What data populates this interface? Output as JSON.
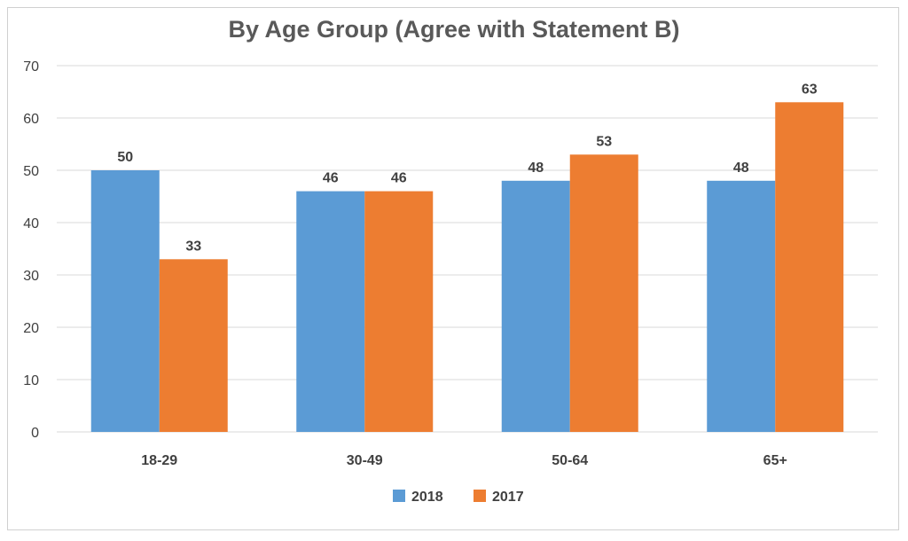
{
  "chart_data": {
    "type": "bar",
    "title": "By Age Group (Agree with Statement B)",
    "categories": [
      "18-29",
      "30-49",
      "50-64",
      "65+"
    ],
    "series": [
      {
        "name": "2018",
        "color": "#5B9BD5",
        "values": [
          50,
          46,
          48,
          48
        ]
      },
      {
        "name": "2017",
        "color": "#ED7D31",
        "values": [
          33,
          46,
          53,
          63
        ]
      }
    ],
    "ylim": [
      0,
      70
    ],
    "yticks": [
      0,
      10,
      20,
      30,
      40,
      50,
      60,
      70
    ],
    "xlabel": "",
    "ylabel": "",
    "grid": true,
    "legend_position": "bottom"
  }
}
